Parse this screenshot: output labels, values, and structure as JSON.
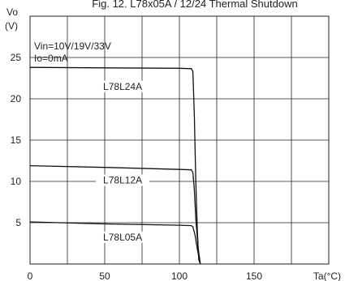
{
  "chart_data": {
    "type": "line",
    "title": "Fig. 12. L78x05A / 12/24 Thermal Shutdown",
    "ylabel": "Vo",
    "ylabel_unit": "(V)",
    "xlabel": "Ta(°C)",
    "xlim": [
      0,
      200
    ],
    "ylim": [
      0,
      25
    ],
    "grid": true,
    "x_gridlines": [
      25,
      50,
      75,
      100,
      125,
      150,
      175
    ],
    "y_gridlines": [
      5,
      10,
      15,
      20,
      25
    ],
    "x_ticks": [
      0,
      50,
      100,
      150
    ],
    "x_tick_labels": [
      "0",
      "50",
      "100",
      "150"
    ],
    "y_ticks": [
      5,
      10,
      15,
      20,
      25
    ],
    "y_tick_labels": [
      "5",
      "10",
      "15",
      "20",
      "25"
    ],
    "conditions": [
      "Vin=10V/19V/33V",
      "Io=0mA"
    ],
    "series": [
      {
        "name": "L78L24A",
        "label_at": [
          0,
          0
        ],
        "points": [
          [
            0,
            23.8
          ],
          [
            50,
            23.75
          ],
          [
            100,
            23.7
          ],
          [
            108,
            23.65
          ],
          [
            109,
            23.3
          ],
          [
            110,
            18
          ],
          [
            111,
            10
          ],
          [
            112,
            4
          ],
          [
            113,
            0.5
          ],
          [
            114,
            0
          ]
        ]
      },
      {
        "name": "L78L12A",
        "label_at": [
          0,
          0
        ],
        "points": [
          [
            0,
            11.9
          ],
          [
            50,
            11.7
          ],
          [
            100,
            11.45
          ],
          [
            108,
            11.4
          ],
          [
            109,
            11.1
          ],
          [
            110,
            9
          ],
          [
            111,
            5.5
          ],
          [
            112.5,
            2
          ],
          [
            114,
            0
          ]
        ]
      },
      {
        "name": "L78L05A",
        "label_at": [
          0,
          0
        ],
        "points": [
          [
            0,
            5.1
          ],
          [
            50,
            4.85
          ],
          [
            100,
            4.7
          ],
          [
            108,
            4.65
          ],
          [
            109,
            4.5
          ],
          [
            110.5,
            3.5
          ],
          [
            112,
            1.8
          ],
          [
            114,
            0
          ]
        ]
      }
    ],
    "series_labels": [
      {
        "name": "L78L24A",
        "x": 62,
        "y": 21.2
      },
      {
        "name": "L78L12A",
        "x": 62,
        "y": 9.85
      },
      {
        "name": "L78L05A",
        "x": 62,
        "y": 2.95
      }
    ]
  }
}
